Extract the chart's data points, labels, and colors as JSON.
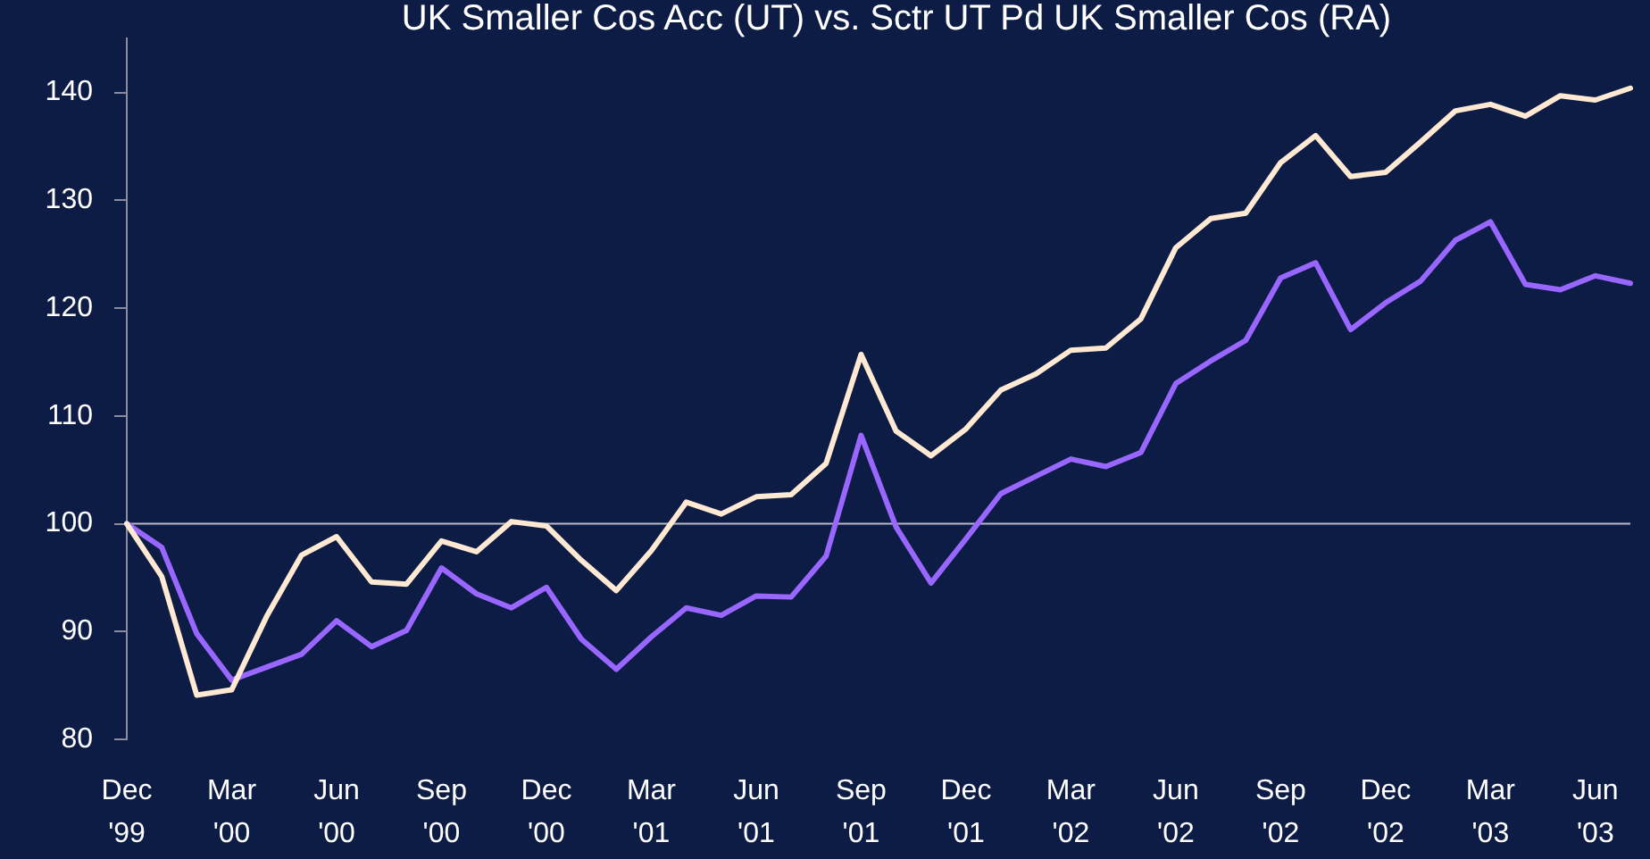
{
  "chart_data": {
    "type": "line",
    "title": "UK Smaller Cos Acc (UT) vs. Sctr UT Pd UK Smaller Cos (RA)",
    "categories": [
      "Dec '99",
      null,
      null,
      "Mar '00",
      null,
      null,
      "Jun '00",
      null,
      null,
      "Sep '00",
      null,
      null,
      "Dec '00",
      null,
      null,
      "Mar '01",
      null,
      null,
      "Jun '01",
      null,
      null,
      "Sep '01",
      null,
      null,
      "Dec '01",
      null,
      null,
      "Mar '02",
      null,
      null,
      "Jun '02",
      null,
      null,
      "Sep '02",
      null,
      null,
      "Dec '02",
      null,
      null,
      "Mar '03",
      null,
      null,
      "Jun '03",
      null
    ],
    "series": [
      {
        "color": "#ffe9d2",
        "values": [
          100,
          95.1,
          84.1,
          84.6,
          91.4,
          97.1,
          98.8,
          94.6,
          94.4,
          98.4,
          97.4,
          100.2,
          99.8,
          96.6,
          93.8,
          97.5,
          102.0,
          100.9,
          102.5,
          102.7,
          105.6,
          115.7,
          108.6,
          106.3,
          108.8,
          112.4,
          113.9,
          116.1,
          116.3,
          119.0,
          125.6,
          128.3,
          128.8,
          133.5,
          136.0,
          132.2,
          132.6,
          135.4,
          138.3,
          138.9,
          137.8,
          139.7,
          139.3,
          140.4
        ]
      },
      {
        "color": "#9966ff",
        "values": [
          100,
          97.8,
          89.8,
          85.5,
          86.7,
          87.9,
          91.0,
          88.6,
          90.1,
          95.9,
          93.5,
          92.2,
          94.1,
          89.3,
          86.5,
          89.5,
          92.2,
          91.5,
          93.3,
          93.2,
          97.0,
          108.2,
          99.7,
          94.5,
          98.6,
          102.8,
          104.4,
          106.0,
          105.3,
          106.6,
          113.0,
          115.1,
          117.0,
          122.8,
          124.2,
          118.0,
          120.5,
          122.5,
          126.3,
          128.0,
          122.2,
          121.7,
          123.0,
          122.3
        ]
      }
    ],
    "ylim": [
      80,
      145
    ],
    "yticks": [
      80,
      90,
      100,
      110,
      120,
      130,
      140
    ],
    "ref_lines": [
      {
        "axis": "y",
        "value": 100,
        "color": "#b8b8c8"
      }
    ],
    "marker": "none"
  }
}
